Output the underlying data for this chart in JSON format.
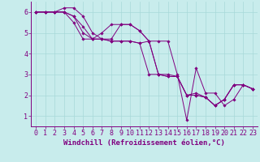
{
  "background_color": "#c8ecec",
  "line_color": "#800080",
  "grid_color": "#a8d8d8",
  "xlabel": "Windchill (Refroidissement éolien,°C)",
  "xlabel_fontsize": 6.5,
  "tick_fontsize": 6.0,
  "ylim": [
    0.5,
    6.5
  ],
  "xlim": [
    -0.5,
    23.5
  ],
  "yticks": [
    1,
    2,
    3,
    4,
    5,
    6
  ],
  "xticks": [
    0,
    1,
    2,
    3,
    4,
    5,
    6,
    7,
    8,
    9,
    10,
    11,
    12,
    13,
    14,
    15,
    16,
    17,
    18,
    19,
    20,
    21,
    22,
    23
  ],
  "series": [
    [
      6.0,
      6.0,
      6.0,
      6.2,
      6.2,
      5.8,
      5.0,
      4.7,
      4.7,
      5.4,
      5.4,
      5.1,
      4.6,
      4.6,
      4.6,
      3.0,
      0.8,
      3.3,
      2.1,
      2.1,
      1.5,
      1.8,
      2.5,
      2.3
    ],
    [
      6.0,
      6.0,
      6.0,
      6.0,
      5.8,
      5.3,
      4.7,
      4.7,
      4.6,
      4.6,
      4.6,
      4.5,
      4.6,
      3.0,
      3.0,
      2.9,
      2.0,
      2.0,
      1.9,
      1.5,
      1.8,
      2.5,
      2.5,
      2.3
    ],
    [
      6.0,
      6.0,
      6.0,
      6.0,
      5.8,
      5.0,
      4.7,
      5.0,
      5.4,
      5.4,
      5.4,
      5.1,
      4.6,
      3.0,
      2.9,
      2.9,
      2.0,
      2.1,
      1.9,
      1.5,
      1.8,
      2.5,
      2.5,
      2.3
    ],
    [
      6.0,
      6.0,
      6.0,
      6.0,
      5.5,
      4.7,
      4.7,
      4.7,
      4.6,
      4.6,
      4.6,
      4.5,
      3.0,
      3.0,
      2.9,
      2.9,
      2.0,
      2.0,
      1.9,
      1.5,
      1.8,
      2.5,
      2.5,
      2.3
    ]
  ]
}
